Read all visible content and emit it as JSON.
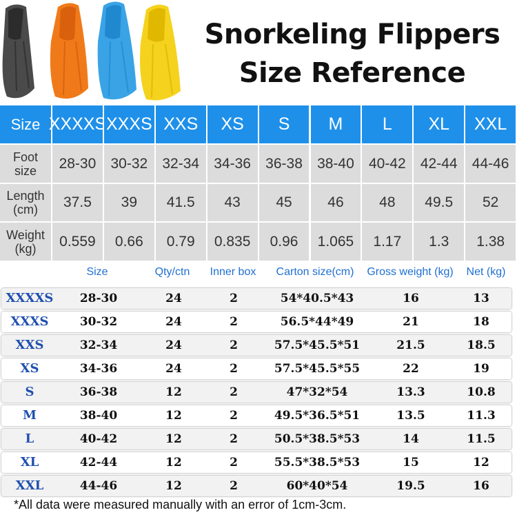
{
  "title": {
    "line1": "Snorkeling Flippers",
    "line2": "Size Reference"
  },
  "fin_colors": [
    "#4a4a4a",
    "#f07a1a",
    "#3aa3e6",
    "#f5d21e"
  ],
  "size_chart": {
    "header_label": "Size",
    "sizes": [
      "XXXXS",
      "XXXS",
      "XXS",
      "XS",
      "S",
      "M",
      "L",
      "XL",
      "XXL"
    ],
    "rows": [
      {
        "label1": "Foot",
        "label2": "size",
        "values": [
          "28-30",
          "30-32",
          "32-34",
          "34-36",
          "36-38",
          "38-40",
          "40-42",
          "42-44",
          "44-46"
        ]
      },
      {
        "label1": "Length",
        "label2": "(cm)",
        "values": [
          "37.5",
          "39",
          "41.5",
          "43",
          "45",
          "46",
          "48",
          "49.5",
          "52"
        ]
      },
      {
        "label1": "Weight",
        "label2": "(kg)",
        "values": [
          "0.559",
          "0.66",
          "0.79",
          "0.835",
          "0.96",
          "1.065",
          "1.17",
          "1.3",
          "1.38"
        ]
      }
    ]
  },
  "packing": {
    "headers": [
      "Size",
      "Qty/ctn",
      "Inner box",
      "Carton size(cm)",
      "Gross weight (kg)",
      "Net (kg)"
    ],
    "rows": [
      {
        "size": "XXXXS",
        "range": "28-30",
        "qty": "24",
        "inner": "2",
        "carton": "54*40.5*43",
        "gross": "16",
        "net": "13"
      },
      {
        "size": "XXXS",
        "range": "30-32",
        "qty": "24",
        "inner": "2",
        "carton": "56.5*44*49",
        "gross": "21",
        "net": "18"
      },
      {
        "size": "XXS",
        "range": "32-34",
        "qty": "24",
        "inner": "2",
        "carton": "57.5*45.5*51",
        "gross": "21.5",
        "net": "18.5"
      },
      {
        "size": "XS",
        "range": "34-36",
        "qty": "24",
        "inner": "2",
        "carton": "57.5*45.5*55",
        "gross": "22",
        "net": "19"
      },
      {
        "size": "S",
        "range": "36-38",
        "qty": "12",
        "inner": "2",
        "carton": "47*32*54",
        "gross": "13.3",
        "net": "10.8"
      },
      {
        "size": "M",
        "range": "38-40",
        "qty": "12",
        "inner": "2",
        "carton": "49.5*36.5*51",
        "gross": "13.5",
        "net": "11.3"
      },
      {
        "size": "L",
        "range": "40-42",
        "qty": "12",
        "inner": "2",
        "carton": "50.5*38.5*53",
        "gross": "14",
        "net": "11.5"
      },
      {
        "size": "XL",
        "range": "42-44",
        "qty": "12",
        "inner": "2",
        "carton": "55.5*38.5*53",
        "gross": "15",
        "net": "12"
      },
      {
        "size": "XXL",
        "range": "44-46",
        "qty": "12",
        "inner": "2",
        "carton": "60*40*54",
        "gross": "19.5",
        "net": "16"
      }
    ]
  },
  "footnote": "*All data were measured manually with an error of 1cm-3cm."
}
